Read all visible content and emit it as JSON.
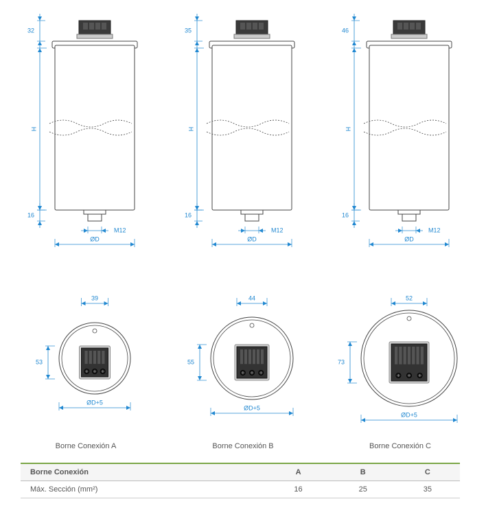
{
  "blue": "#2188d1",
  "labels": {
    "H": "H",
    "bottomStud": "16",
    "thread": "M12",
    "diameter": "ØD",
    "diameterPlus5": "ØD+5"
  },
  "side": [
    {
      "topDim": "32"
    },
    {
      "topDim": "35"
    },
    {
      "topDim": "46"
    }
  ],
  "top": [
    {
      "caption": "Borne Conexión A",
      "w": "39",
      "h": "53",
      "circleR": 52,
      "blockW": 39,
      "blockH": 42,
      "slots": 5
    },
    {
      "caption": "Borne Conexión B",
      "w": "44",
      "h": "55",
      "circleR": 60,
      "blockW": 44,
      "blockH": 46,
      "slots": 6
    },
    {
      "caption": "Borne Conexión C",
      "w": "52",
      "h": "73",
      "circleR": 70,
      "blockW": 52,
      "blockH": 54,
      "slots": 7
    }
  ],
  "table": {
    "header": "Borne Conexión",
    "cols": [
      "A",
      "B",
      "C"
    ],
    "rowLabel": "Máx. Sección (mm²)",
    "row": [
      "16",
      "25",
      "35"
    ]
  }
}
